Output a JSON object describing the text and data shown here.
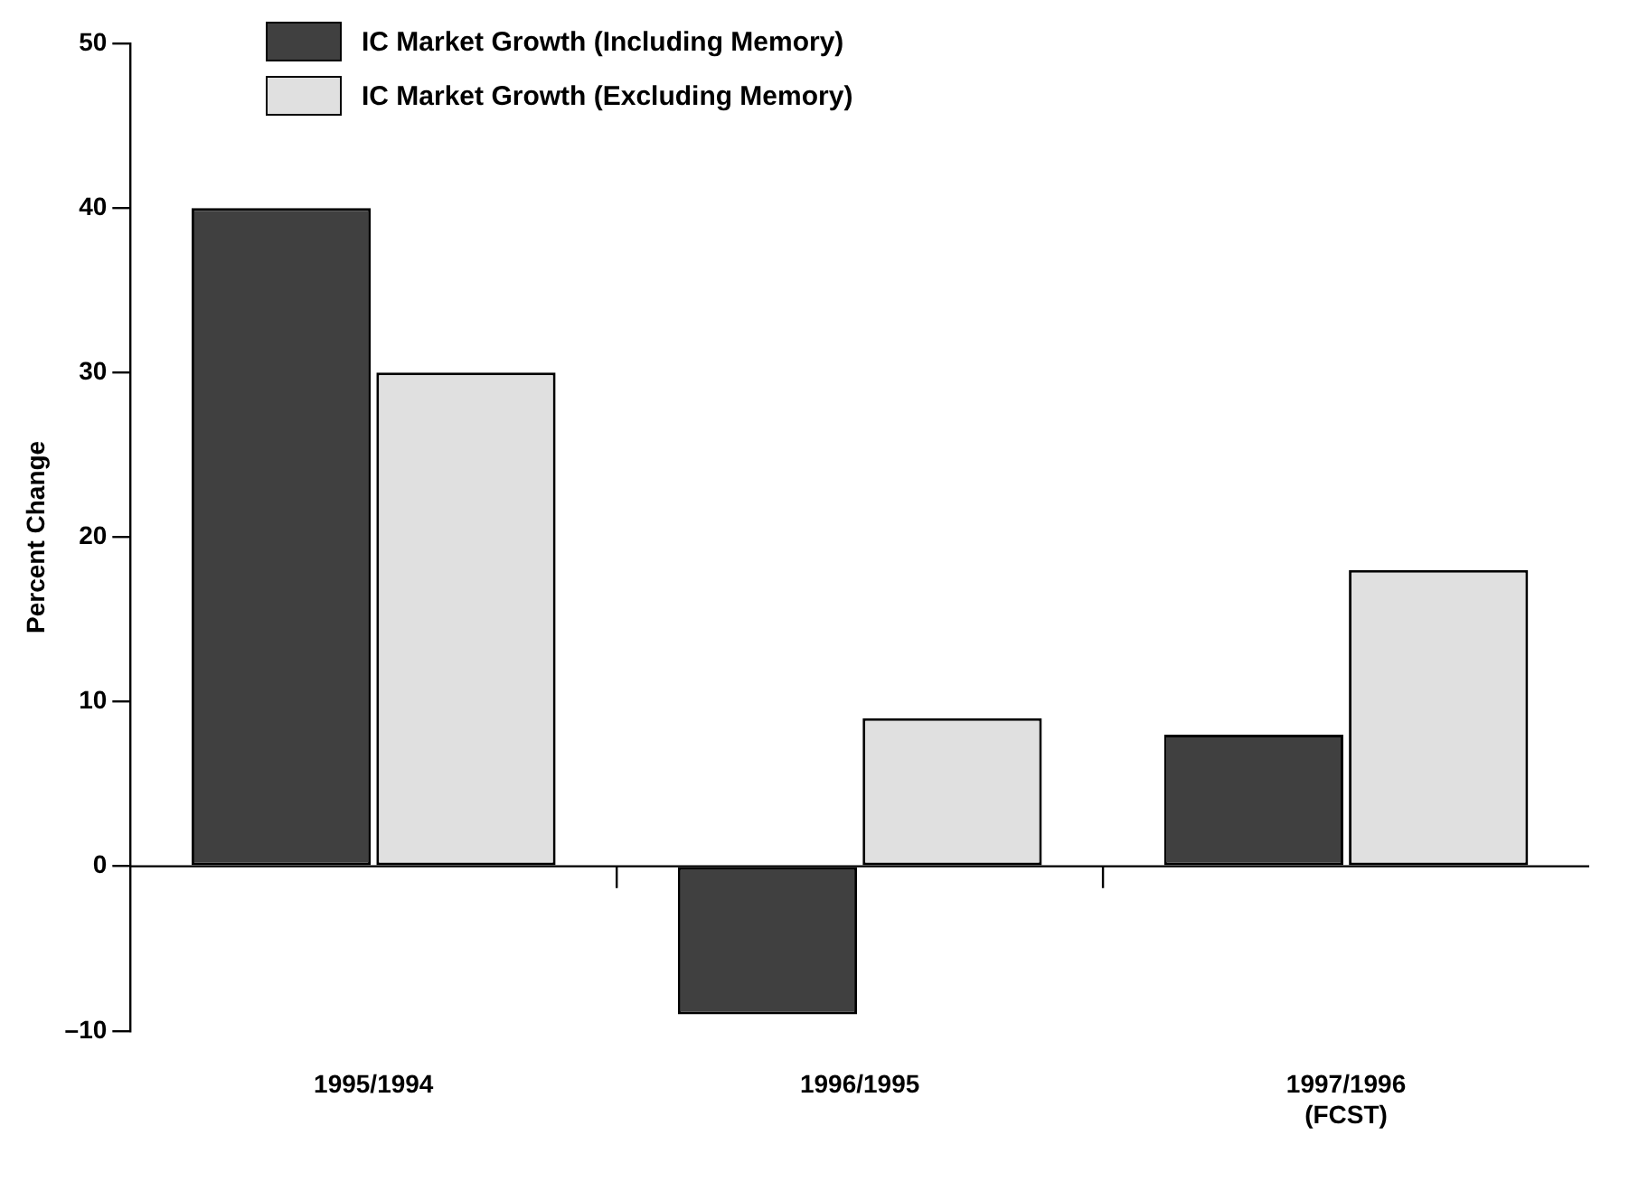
{
  "chart_data": {
    "type": "bar",
    "ylabel": "Percent Change",
    "categories": [
      "1995/1994",
      "1996/1995",
      "1997/1996\n(FCST)"
    ],
    "series": [
      {
        "name": "IC Market Growth (Including Memory)",
        "color": "#404040",
        "values": [
          40,
          -9,
          8
        ]
      },
      {
        "name": "IC Market Growth (Excluding Memory)",
        "color": "#e0e0e0",
        "values": [
          30,
          9,
          18
        ]
      }
    ],
    "ylim": [
      -10,
      50
    ],
    "yticks": [
      {
        "value": -10,
        "label": "–10"
      },
      0,
      10,
      20,
      30,
      40,
      50
    ],
    "legend": "top left"
  }
}
